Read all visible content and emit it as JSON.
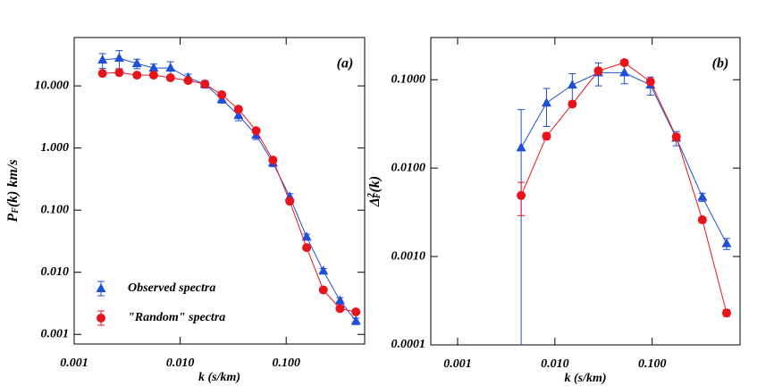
{
  "chart_data": [
    {
      "type": "line",
      "annotation": "(a)",
      "xlabel": "k (s/km)",
      "ylabel": [
        {
          "text": "P"
        },
        {
          "text": "F",
          "sub": true
        },
        {
          "text": "(k) km/s"
        }
      ],
      "xlog": true,
      "ylog": true,
      "xlim": [
        0.001,
        0.55
      ],
      "ylim": [
        0.0007,
        60
      ],
      "xticks": [
        {
          "value": 0.001,
          "label": "0.001"
        },
        {
          "value": 0.01,
          "label": "0.010"
        },
        {
          "value": 0.1,
          "label": "0.100"
        }
      ],
      "yticks": [
        {
          "value": 0.001,
          "label": "0.001"
        },
        {
          "value": 0.01,
          "label": "0.010"
        },
        {
          "value": 0.1,
          "label": "0.100"
        },
        {
          "value": 1,
          "label": "1.000"
        },
        {
          "value": 10,
          "label": "10.000"
        }
      ],
      "legend": "lower left",
      "x": [
        0.00185,
        0.00266,
        0.00391,
        0.00562,
        0.0081,
        0.0119,
        0.0171,
        0.0247,
        0.0355,
        0.0521,
        0.075,
        0.108,
        0.156,
        0.224,
        0.322,
        0.455
      ],
      "series": [
        {
          "name": "Observed spectra",
          "color": "#1f4fd8",
          "marker": "triangle",
          "values": [
            26.1,
            27.9,
            22.9,
            19.4,
            19.4,
            13.5,
            10.7,
            6.08,
            3.35,
            1.62,
            0.58,
            0.164,
            0.037,
            0.0105,
            0.0035,
            0.00164
          ],
          "errors": [
            7,
            9,
            4,
            3,
            5,
            2,
            1.5,
            0.8,
            0.6,
            0.25,
            0.08,
            0.02,
            0.004,
            0.001,
            0.0004,
            0.0002
          ]
        },
        {
          "name": "\"Random\" spectra",
          "color": "#e8141c",
          "marker": "circle",
          "values": [
            15.9,
            16.4,
            14.9,
            14.9,
            13.5,
            12.2,
            10.7,
            7.2,
            4.2,
            1.9,
            0.64,
            0.139,
            0.0249,
            0.0052,
            0.0026,
            0.0023
          ]
        }
      ]
    },
    {
      "type": "line",
      "annotation": "(b)",
      "xlabel": "k (s/km)",
      "ylabel": [
        {
          "text": "Δ"
        },
        {
          "text": "2",
          "sup": true
        },
        {
          "text": "F",
          "sub": true
        },
        {
          "text": "(k)"
        }
      ],
      "xlog": true,
      "ylog": true,
      "xlim": [
        0.00053,
        0.8
      ],
      "ylim": [
        0.0001,
        0.3
      ],
      "xticks": [
        {
          "value": 0.001,
          "label": "0.001"
        },
        {
          "value": 0.01,
          "label": "0.010"
        },
        {
          "value": 0.1,
          "label": "0.100"
        }
      ],
      "yticks": [
        {
          "value": 0.0001,
          "label": "0.0001"
        },
        {
          "value": 0.001,
          "label": "0.0010"
        },
        {
          "value": 0.01,
          "label": "0.0100"
        },
        {
          "value": 0.1,
          "label": "0.1000"
        }
      ],
      "x": [
        0.0045,
        0.0082,
        0.0151,
        0.028,
        0.0518,
        0.096,
        0.177,
        0.328,
        0.582
      ],
      "series": [
        {
          "name": "Observed spectra",
          "color": "#1f4fd8",
          "marker": "triangle",
          "values": [
            0.017,
            0.0546,
            0.087,
            0.12,
            0.12,
            0.087,
            0.0219,
            0.0047,
            0.0014
          ],
          "errors": [
            0.029,
            0.025,
            0.03,
            0.035,
            0.03,
            0.02,
            0.004,
            0.0005,
            0.0002
          ]
        },
        {
          "name": "\"Random\" spectra",
          "color": "#e8141c",
          "marker": "circle",
          "values": [
            0.0049,
            0.023,
            0.053,
            0.126,
            0.156,
            0.095,
            0.0225,
            0.0026,
            0.00023
          ],
          "errors": [
            0.002,
            0.002,
            0.004,
            0.01,
            0.01,
            0.006,
            0.002,
            0.0002,
            2e-05
          ]
        }
      ]
    }
  ]
}
